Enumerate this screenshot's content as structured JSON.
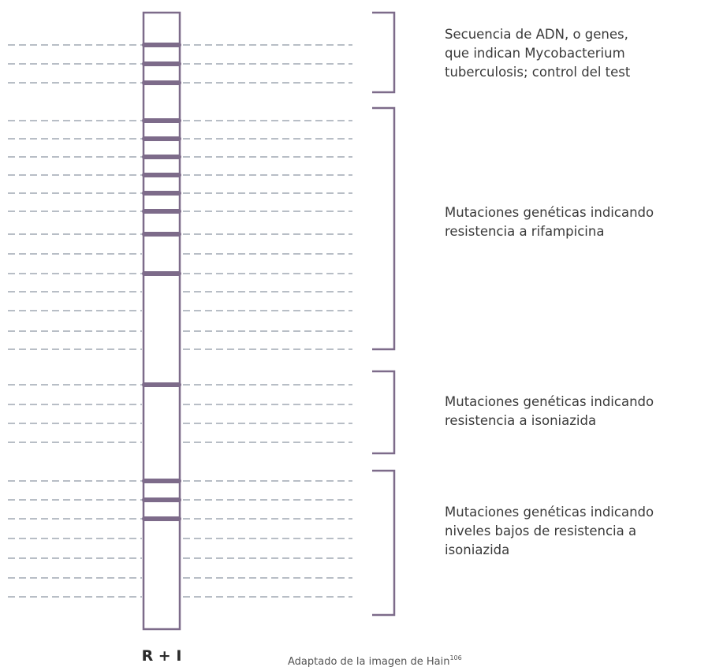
{
  "strip": {
    "label": "R + I"
  },
  "groups": [
    {
      "lines": [
        "Secuencia de ADN, o genes,",
        "que indican Mycobacterium",
        "tuberculosis; control del test"
      ]
    },
    {
      "lines": [
        "Mutaciones genéticas indicando",
        "resistencia a rifampicina"
      ]
    },
    {
      "lines": [
        "Mutaciones genéticas indicando",
        "resistencia a isoniazida"
      ]
    },
    {
      "lines": [
        "Mutaciones genéticas indicando",
        "niveles bajos de resistencia a",
        "isoniazida"
      ]
    }
  ],
  "caption": {
    "text": "Adaptado de la imagen de Hain",
    "ref": "106"
  }
}
